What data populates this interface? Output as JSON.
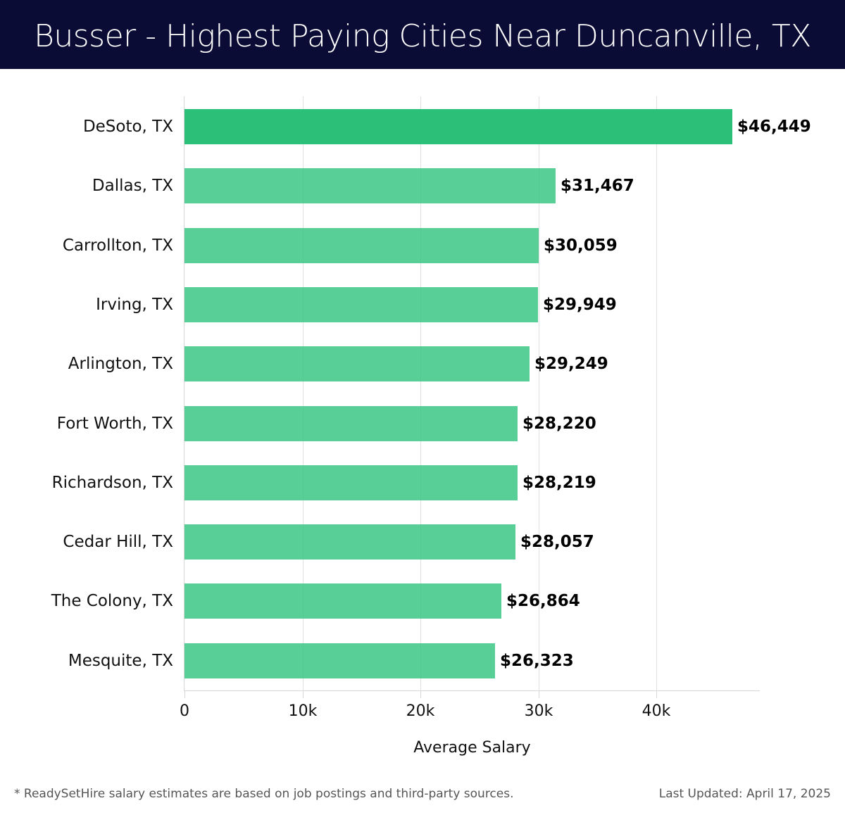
{
  "header": {
    "title": "Busser - Highest Paying Cities Near Duncanville, TX"
  },
  "colors": {
    "header_bg": "#0b0c35",
    "top_bar": "#2bbf77",
    "bar": "#52c98f"
  },
  "chart_data": {
    "type": "bar",
    "orientation": "horizontal",
    "title": "Busser - Highest Paying Cities Near Duncanville, TX",
    "xlabel": "Average Salary",
    "ylabel": "",
    "categories": [
      "DeSoto, TX",
      "Dallas, TX",
      "Carrollton, TX",
      "Irving, TX",
      "Arlington, TX",
      "Fort Worth, TX",
      "Richardson, TX",
      "Cedar Hill, TX",
      "The Colony, TX",
      "Mesquite, TX"
    ],
    "values": [
      46449,
      31467,
      30059,
      29949,
      29249,
      28220,
      28219,
      28057,
      26864,
      26323
    ],
    "value_labels": [
      "$46,449",
      "$31,467",
      "$30,059",
      "$29,949",
      "$29,249",
      "$28,220",
      "$28,219",
      "$28,057",
      "$26,864",
      "$26,323"
    ],
    "xticks": [
      "0",
      "10k",
      "20k",
      "30k",
      "40k"
    ],
    "xtick_values": [
      0,
      10000,
      20000,
      30000,
      40000
    ],
    "xlim": [
      0,
      48800
    ],
    "grid": true,
    "legend": null
  },
  "footer": {
    "note": "* ReadySetHire salary estimates are based on job postings and third-party sources.",
    "updated": "Last Updated: April 17, 2025"
  }
}
